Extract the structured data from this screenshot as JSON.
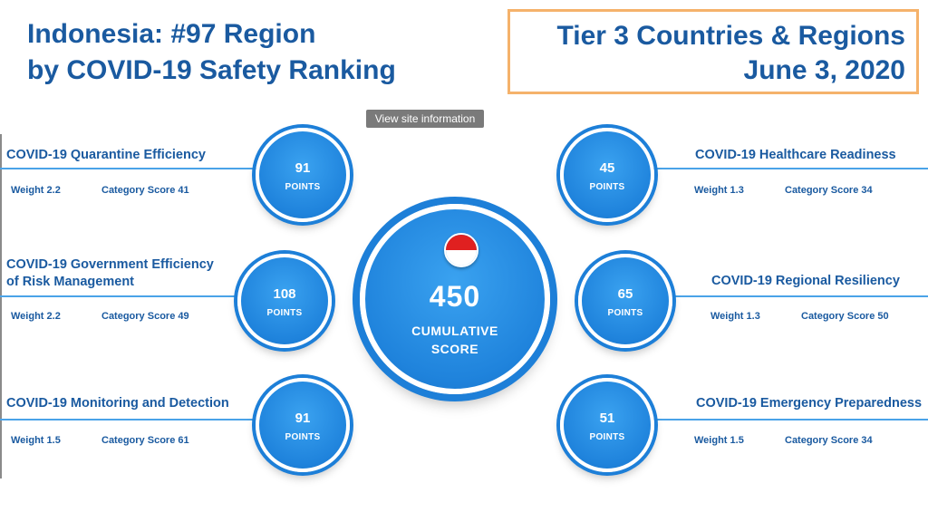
{
  "header": {
    "title_line1": "Indonesia: #97 Region",
    "title_line2": "by COVID-19 Safety Ranking",
    "tier_line1": "Tier 3 Countries & Regions",
    "tier_line2": "June 3, 2020"
  },
  "tooltip": "View site information",
  "center": {
    "score": "450",
    "label_line1": "CUMULATIVE",
    "label_line2": "SCORE",
    "flag": "indonesia-flag-icon"
  },
  "categories": [
    {
      "title": "COVID-19 Quarantine Efficiency",
      "title2": "",
      "points": "91",
      "points_label": "POINTS",
      "weight": "Weight 2.2",
      "score": "Category Score 41"
    },
    {
      "title": "COVID-19 Government Efficiency",
      "title2": "of Risk Management",
      "points": "108",
      "points_label": "POINTS",
      "weight": "Weight 2.2",
      "score": "Category Score 49"
    },
    {
      "title": "COVID-19 Monitoring and Detection",
      "title2": "",
      "points": "91",
      "points_label": "POINTS",
      "weight": "Weight 1.5",
      "score": "Category Score 61"
    },
    {
      "title": "COVID-19 Healthcare Readiness",
      "title2": "",
      "points": "45",
      "points_label": "POINTS",
      "weight": "Weight 1.3",
      "score": "Category Score 34"
    },
    {
      "title": "COVID-19 Regional Resiliency",
      "title2": "",
      "points": "65",
      "points_label": "POINTS",
      "weight": "Weight 1.3",
      "score": "Category Score 50"
    },
    {
      "title": "COVID-19 Emergency Preparedness",
      "title2": "",
      "points": "51",
      "points_label": "POINTS",
      "weight": "Weight 1.5",
      "score": "Category Score 34"
    }
  ]
}
